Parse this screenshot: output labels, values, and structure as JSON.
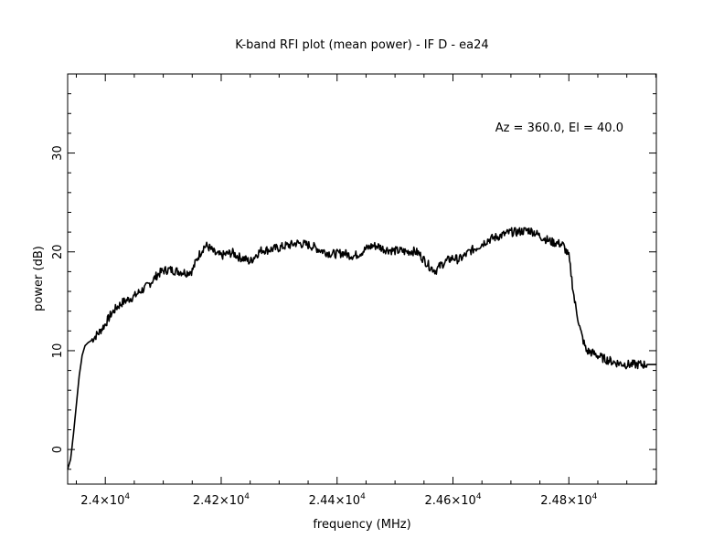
{
  "chart_data": {
    "type": "line",
    "title": "K-band RFI plot (mean power) - IF D - ea24",
    "xlabel": "frequency (MHz)",
    "ylabel": "power (dB)",
    "annotation": "Az = 360.0, El = 40.0",
    "xlim": [
      23935,
      24951
    ],
    "ylim": [
      -3.5,
      38.0
    ],
    "grid": false,
    "line_color": "#000000",
    "x_ticks": [
      {
        "value": 24000,
        "label_base": "2.4×10",
        "label_exp": "4"
      },
      {
        "value": 24200,
        "label_base": "2.42×10",
        "label_exp": "4"
      },
      {
        "value": 24400,
        "label_base": "2.44×10",
        "label_exp": "4"
      },
      {
        "value": 24600,
        "label_base": "2.46×10",
        "label_exp": "4"
      },
      {
        "value": 24800,
        "label_base": "2.48×10",
        "label_exp": "4"
      }
    ],
    "y_ticks": [
      {
        "value": 0,
        "label": "0"
      },
      {
        "value": 10,
        "label": "10"
      },
      {
        "value": 20,
        "label": "20"
      },
      {
        "value": 30,
        "label": "30"
      }
    ],
    "series": [
      {
        "x": [
          23935,
          23940,
          23945,
          23950,
          23955,
          23960,
          23965,
          23970,
          23975,
          23980,
          23990,
          24000,
          24010,
          24020,
          24030,
          24040,
          24050,
          24060,
          24070,
          24080,
          24090,
          24100,
          24110,
          24120,
          24130,
          24140,
          24150,
          24160,
          24170,
          24175,
          24180,
          24190,
          24200,
          24210,
          24220,
          24230,
          24240,
          24250,
          24260,
          24270,
          24280,
          24290,
          24300,
          24310,
          24320,
          24330,
          24340,
          24350,
          24360,
          24370,
          24380,
          24390,
          24400,
          24410,
          24420,
          24430,
          24440,
          24450,
          24460,
          24470,
          24480,
          24490,
          24500,
          24510,
          24520,
          24530,
          24540,
          24550,
          24560,
          24570,
          24580,
          24590,
          24600,
          24610,
          24620,
          24630,
          24640,
          24650,
          24660,
          24670,
          24680,
          24690,
          24700,
          24710,
          24720,
          24730,
          24740,
          24750,
          24760,
          24770,
          24780,
          24790,
          24800,
          24810,
          24820,
          24830,
          24840,
          24850,
          24860,
          24870,
          24880,
          24890,
          24900,
          24910,
          24920,
          24930,
          24935,
          24940,
          24945,
          24951
        ],
        "y": [
          -2.0,
          -1.0,
          1.5,
          4.5,
          7.5,
          9.5,
          10.5,
          10.8,
          11.0,
          11.3,
          11.9,
          12.7,
          13.7,
          14.4,
          14.9,
          15.2,
          15.5,
          16.0,
          16.4,
          17.0,
          17.7,
          18.1,
          18.2,
          18.1,
          18.0,
          17.9,
          18.1,
          19.5,
          20.5,
          20.6,
          20.4,
          19.8,
          19.6,
          19.8,
          19.9,
          19.5,
          19.3,
          19.0,
          19.7,
          20.2,
          20.2,
          20.3,
          20.4,
          20.6,
          20.7,
          20.9,
          20.8,
          20.7,
          20.5,
          20.2,
          20.0,
          19.8,
          19.8,
          19.9,
          19.7,
          19.6,
          19.9,
          20.3,
          20.6,
          20.6,
          20.3,
          20.2,
          20.1,
          20.1,
          20.0,
          20.1,
          19.9,
          19.2,
          18.5,
          18.1,
          18.7,
          19.1,
          19.4,
          19.2,
          19.6,
          20.1,
          20.4,
          20.8,
          21.2,
          21.4,
          21.6,
          21.8,
          22.0,
          22.0,
          22.1,
          22.2,
          22.0,
          21.6,
          21.3,
          21.0,
          20.9,
          20.7,
          19.5,
          15.0,
          12.0,
          10.0,
          9.8,
          9.5,
          9.2,
          9.0,
          8.8,
          8.7,
          8.6,
          8.6,
          8.6,
          8.6,
          8.6,
          8.6,
          8.6,
          8.6
        ]
      }
    ]
  }
}
